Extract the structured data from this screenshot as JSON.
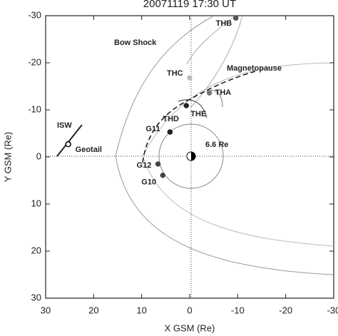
{
  "chart_data": {
    "type": "scatter",
    "title": "20071119 17:30 UT",
    "xlabel": "X GSM (Re)",
    "ylabel": "Y GSM (Re)",
    "xlim": [
      30,
      -30
    ],
    "ylim": [
      -30,
      30
    ],
    "xticks": [
      30,
      20,
      10,
      0,
      -10,
      -20,
      -30
    ],
    "yticks": [
      -30,
      -20,
      -10,
      0,
      10,
      20,
      30
    ],
    "annotations": [
      "Bow Shock",
      "Magnetopause",
      "6.6 Re",
      "ISW"
    ],
    "series": [
      {
        "name": "THB",
        "color": "#555555",
        "x": [
          -9.6
        ],
        "values": [
          -29.5
        ]
      },
      {
        "name": "THC",
        "color": "#bbbbbb",
        "x": [
          0
        ],
        "values": [
          -16.8
        ]
      },
      {
        "name": "THA",
        "color": "#777777",
        "x": [
          -4.1
        ],
        "values": [
          -13.6
        ]
      },
      {
        "name": "THE",
        "color": "#222222",
        "x": [
          0.7
        ],
        "values": [
          -10.9
        ]
      },
      {
        "name": "THD",
        "color": "#222222",
        "x": [
          4.1
        ],
        "values": [
          -5.3
        ]
      },
      {
        "name": "G11",
        "color": "#222222",
        "x": [
          4.1
        ],
        "values": [
          -5.3
        ]
      },
      {
        "name": "G12",
        "color": "#444444",
        "x": [
          6.6
        ],
        "values": [
          1.5
        ]
      },
      {
        "name": "G10",
        "color": "#444444",
        "x": [
          5.6
        ],
        "values": [
          3.9
        ]
      },
      {
        "name": "Geotail",
        "color": "#000000",
        "hollow": true,
        "x": [
          25.3
        ],
        "values": [
          -2.7
        ]
      }
    ]
  }
}
